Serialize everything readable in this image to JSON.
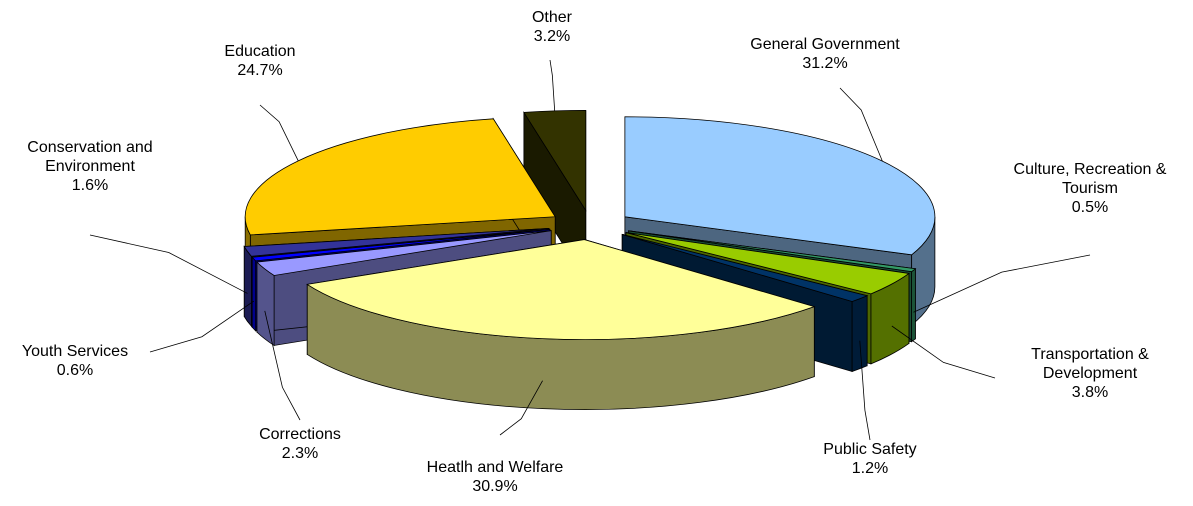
{
  "chart_data": {
    "type": "pie",
    "categories": [
      "General Government",
      "Culture, Recreation & Tourism",
      "Transportation & Development",
      "Public Safety",
      "Heatlh and Welfare",
      "Corrections",
      "Youth Services",
      "Conservation and Environment",
      "Education",
      "Other"
    ],
    "values": [
      31.2,
      0.5,
      3.8,
      1.2,
      30.9,
      2.3,
      0.6,
      1.6,
      24.7,
      3.2
    ],
    "value_labels": [
      "31.2%",
      "0.5%",
      "3.8%",
      "1.2%",
      "30.9%",
      "2.3%",
      "0.6%",
      "1.6%",
      "24.7%",
      "3.2%"
    ],
    "colors": [
      "#99ccff",
      "#339966",
      "#99cc00",
      "#003366",
      "#ffff99",
      "#9999ff",
      "#0000ff",
      "#333399",
      "#ffcc00",
      "#333300"
    ]
  }
}
